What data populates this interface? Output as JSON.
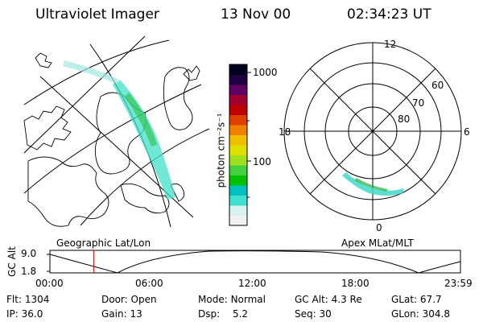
{
  "header": {
    "instrument": "Ultraviolet Imager",
    "date": "13 Nov 00",
    "time": "02:34:23 UT"
  },
  "geo_panel": {
    "caption": "Geographic Lat/Lon"
  },
  "polar_panel": {
    "caption": "Apex MLat/MLT",
    "mlt_labels": {
      "top": "12",
      "left": "18",
      "right": "6",
      "bottom": "0"
    },
    "lat_labels": [
      "60",
      "70",
      "80"
    ]
  },
  "colorbar": {
    "unit_label": "photon cm⁻²s⁻¹",
    "ticks": [
      "1000",
      "100"
    ],
    "scale": "log",
    "colors": [
      "#f0f0f0",
      "#d8f0f0",
      "#40e0d0",
      "#00c0c0",
      "#00c000",
      "#40d040",
      "#a0e020",
      "#e0e000",
      "#f0c000",
      "#f08000",
      "#e04000",
      "#c00000",
      "#a00030",
      "#600060",
      "#200040",
      "#000020"
    ]
  },
  "altitude_plot": {
    "ylabel": "GC Alt",
    "yticks": [
      "9.0",
      "1.8"
    ],
    "xticks": [
      "00:00",
      "06:00",
      "12:00",
      "18:00",
      "23:59"
    ],
    "current_time_fraction": 0.107,
    "marker_color": "#e00000"
  },
  "status": {
    "flt_label": "Flt:",
    "flt_value": "1304",
    "ip_label": "IP:",
    "ip_value": "36.0",
    "door_label": "Door:",
    "door_value": "Open",
    "gain_label": "Gain:",
    "gain_value": "13",
    "mode_label": "Mode:",
    "mode_value": "Normal",
    "dsp_label": "Dsp:",
    "dsp_value": "5.2",
    "gcalt_label": "GC Alt:",
    "gcalt_value": "4.3 Re",
    "seq_label": "Seq:",
    "seq_value": "30",
    "glat_label": "GLat:",
    "glat_value": "67.7",
    "glon_label": "GLon:",
    "glon_value": "304.8"
  }
}
